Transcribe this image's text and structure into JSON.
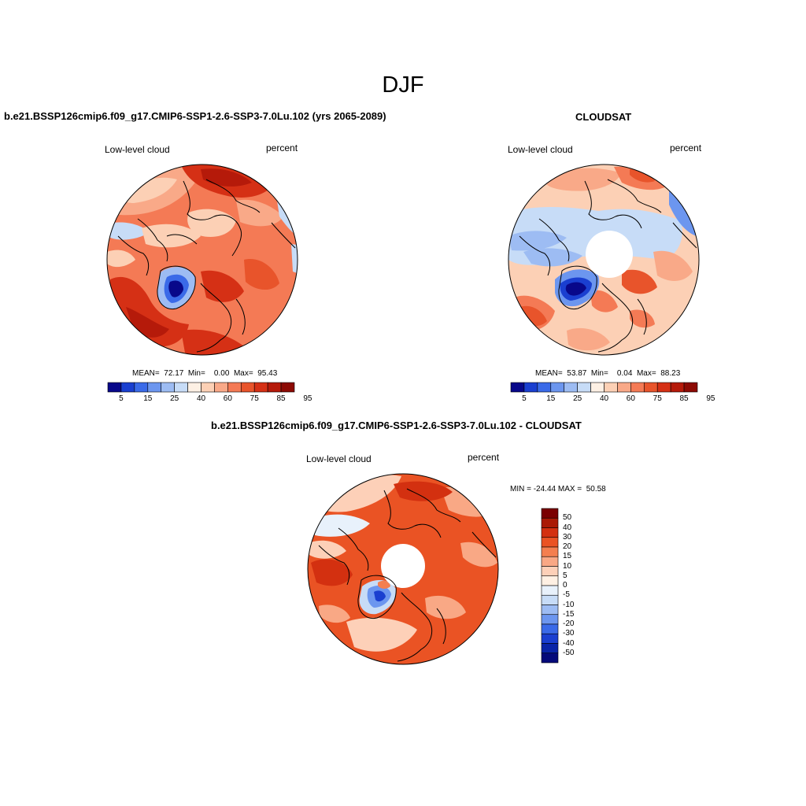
{
  "figure": {
    "title": "DJF"
  },
  "panels": [
    {
      "id": "model",
      "title": "b.e21.BSSP126cmip6.f09_g17.CMIP6-SSP1-2.6-SSP3-7.0Lu.102 (yrs 2065-2089)",
      "left_label": "Low-level cloud",
      "right_label": "percent",
      "stats": "MEAN=  72.17  Min=    0.00  Max=  95.43",
      "colorbar_labels": [
        "5",
        "15",
        "25",
        "40",
        "60",
        "75",
        "85",
        "95"
      ]
    },
    {
      "id": "obs",
      "title": "CLOUDSAT",
      "left_label": "Low-level cloud",
      "right_label": "percent",
      "stats": "MEAN=  53.87  Min=    0.04  Max=  88.23",
      "colorbar_labels": [
        "5",
        "15",
        "25",
        "40",
        "60",
        "75",
        "85",
        "95"
      ]
    },
    {
      "id": "diff",
      "title": "b.e21.BSSP126cmip6.f09_g17.CMIP6-SSP1-2.6-SSP3-7.0Lu.102 - CLOUDSAT",
      "left_label": "Low-level cloud",
      "right_label": "percent",
      "stats": "MIN = -24.44 MAX =  50.58",
      "colorbar_labels": [
        "50",
        "40",
        "30",
        "20",
        "15",
        "10",
        "5",
        "0",
        "-5",
        "-10",
        "-15",
        "-20",
        "-30",
        "-40",
        "-50"
      ]
    }
  ],
  "colors": {
    "abs_scale": [
      "#08088a",
      "#1a3fd0",
      "#3a6ae8",
      "#6c96ef",
      "#9dbcf3",
      "#c7dcf7",
      "#fdf0e4",
      "#fcd0b5",
      "#f9a988",
      "#f47a55",
      "#e8542b",
      "#d53015",
      "#b51a0a",
      "#8c0a04"
    ],
    "diff_scale": [
      "#7a0000",
      "#aa1a05",
      "#d33010",
      "#ea5324",
      "#f47f50",
      "#f9a885",
      "#fdd0b8",
      "#fff0e3",
      "#e8f1fb",
      "#c7dcf7",
      "#9dbcf3",
      "#6c96ef",
      "#3a6ae8",
      "#1a3fd0",
      "#0a25a8",
      "#050a7a"
    ]
  }
}
